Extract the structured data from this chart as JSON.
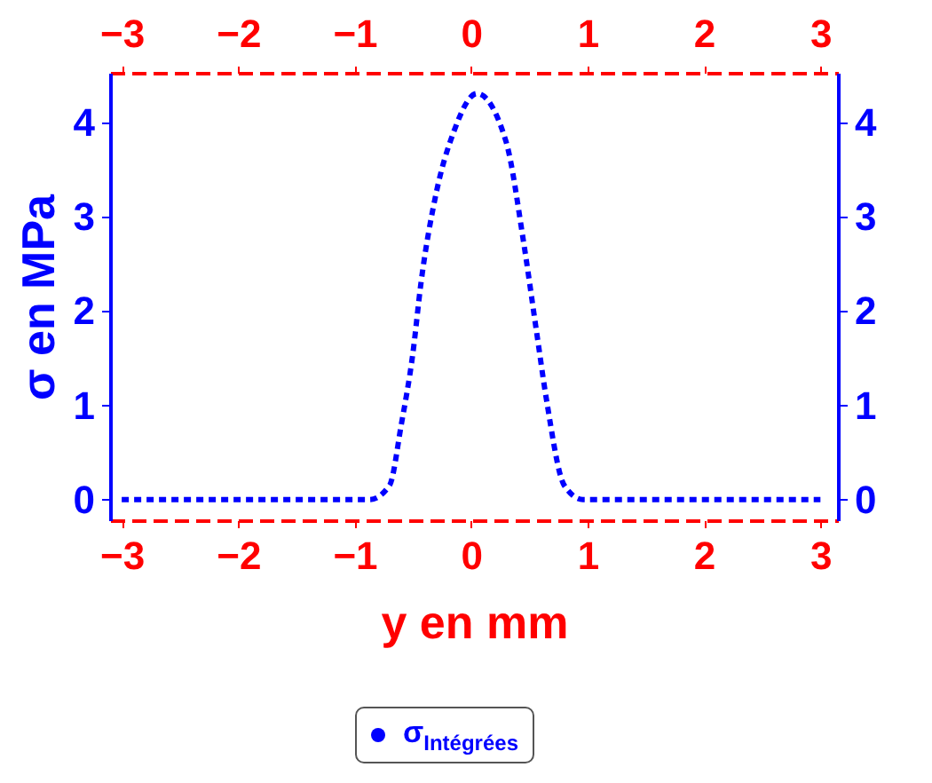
{
  "chart_data": {
    "type": "line",
    "xlabel": "y en mm",
    "ylabel": "σ en MPa",
    "x": [
      -3,
      -2,
      -1,
      -0.87,
      -0.7,
      -0.6,
      -0.5,
      -0.43,
      -0.3,
      -0.15,
      0.05,
      0.3,
      0.45,
      0.56,
      0.65,
      0.8,
      0.96,
      1,
      2,
      3
    ],
    "series": [
      {
        "name": "σ$_{Intégrées}$",
        "color": "#0000ff",
        "values": [
          0,
          0,
          0,
          0,
          0.15,
          0.79,
          1.55,
          2.3,
          3.25,
          3.9,
          4.31,
          3.8,
          2.74,
          1.8,
          1.04,
          0.15,
          0,
          0,
          0,
          0
        ]
      }
    ],
    "xlim": [
      -3.1,
      3.15
    ],
    "xticks": [
      -3,
      -2,
      -1,
      0,
      1,
      2,
      3
    ],
    "x2lim": [
      -3.1,
      3.15
    ],
    "x2ticks": [
      -3,
      -2,
      -1,
      0,
      1,
      2,
      3
    ],
    "ylim": [
      -0.22,
      4.53
    ],
    "yticks": [
      0,
      1,
      2,
      3,
      4
    ],
    "y2lim": [
      -0.22,
      4.53
    ],
    "y2ticks": [
      0,
      1,
      2,
      3,
      4
    ],
    "line_style": "dashed",
    "legend": "bottom",
    "grid": false
  }
}
